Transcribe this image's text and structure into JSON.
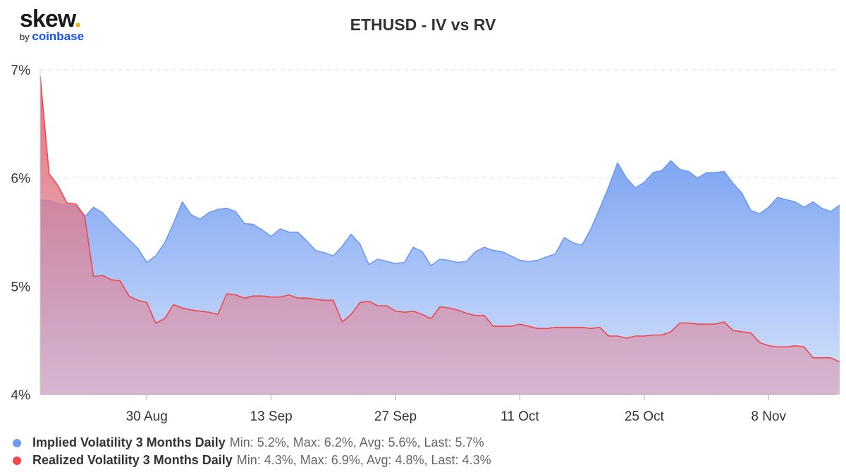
{
  "brand": {
    "name": "skew",
    "dot": ".",
    "by": "by",
    "parent": "coinbase"
  },
  "chart_data": {
    "type": "area",
    "title": "ETHUSD - IV vs RV",
    "xlabel": "",
    "ylabel": "",
    "ylim": [
      4,
      7
    ],
    "y_ticks": [
      4,
      5,
      6,
      7
    ],
    "y_tick_labels": [
      "4%",
      "5%",
      "6%",
      "7%"
    ],
    "x_tick_labels": [
      "30 Aug",
      "13 Sep",
      "27 Sep",
      "11 Oct",
      "25 Oct",
      "8 Nov"
    ],
    "x_tick_positions": [
      12,
      26,
      40,
      54,
      68,
      82
    ],
    "x_range": [
      0,
      89.6
    ],
    "grid": "horizontal dashed",
    "legend_position": "bottom-left",
    "series": [
      {
        "name": "Implied Volatility 3 Months Daily",
        "stats": "Min: 5.2%, Max: 6.2%, Avg: 5.6%, Last: 5.7%",
        "color": "#6e9af0",
        "values": [
          5.8,
          5.79,
          5.76,
          5.75,
          5.74,
          5.64,
          5.73,
          5.68,
          5.59,
          5.51,
          5.43,
          5.35,
          5.22,
          5.28,
          5.4,
          5.58,
          5.78,
          5.66,
          5.62,
          5.68,
          5.71,
          5.72,
          5.69,
          5.58,
          5.57,
          5.52,
          5.46,
          5.53,
          5.5,
          5.5,
          5.42,
          5.33,
          5.31,
          5.28,
          5.37,
          5.48,
          5.39,
          5.2,
          5.25,
          5.23,
          5.21,
          5.22,
          5.36,
          5.32,
          5.19,
          5.25,
          5.24,
          5.22,
          5.23,
          5.32,
          5.36,
          5.33,
          5.32,
          5.28,
          5.24,
          5.23,
          5.24,
          5.27,
          5.3,
          5.45,
          5.4,
          5.38,
          5.53,
          5.72,
          5.92,
          6.14,
          6.0,
          5.91,
          5.96,
          6.05,
          6.07,
          6.16,
          6.08,
          6.06,
          6.0,
          6.05,
          6.05,
          6.06,
          5.95,
          5.86,
          5.7,
          5.67,
          5.73,
          5.82,
          5.8,
          5.78,
          5.73,
          5.78,
          5.72,
          5.69,
          5.75
        ]
      },
      {
        "name": "Realized Volatility 3 Months Daily",
        "stats": "Min: 4.3%, Max: 6.9%, Avg: 4.8%, Last: 4.3%",
        "color": "#f0474b",
        "values": [
          6.94,
          6.04,
          5.93,
          5.77,
          5.76,
          5.65,
          5.09,
          5.1,
          5.06,
          5.05,
          4.91,
          4.87,
          4.85,
          4.66,
          4.7,
          4.83,
          4.8,
          4.78,
          4.77,
          4.76,
          4.74,
          4.93,
          4.92,
          4.89,
          4.91,
          4.91,
          4.9,
          4.9,
          4.92,
          4.89,
          4.89,
          4.88,
          4.87,
          4.87,
          4.67,
          4.74,
          4.85,
          4.86,
          4.82,
          4.82,
          4.77,
          4.76,
          4.77,
          4.74,
          4.7,
          4.81,
          4.8,
          4.78,
          4.75,
          4.73,
          4.73,
          4.63,
          4.63,
          4.63,
          4.65,
          4.63,
          4.61,
          4.61,
          4.62,
          4.62,
          4.62,
          4.62,
          4.61,
          4.62,
          4.54,
          4.54,
          4.52,
          4.54,
          4.54,
          4.55,
          4.55,
          4.58,
          4.66,
          4.66,
          4.65,
          4.65,
          4.65,
          4.67,
          4.59,
          4.58,
          4.57,
          4.48,
          4.45,
          4.44,
          4.44,
          4.45,
          4.44,
          4.34,
          4.34,
          4.34,
          4.3
        ]
      }
    ]
  }
}
